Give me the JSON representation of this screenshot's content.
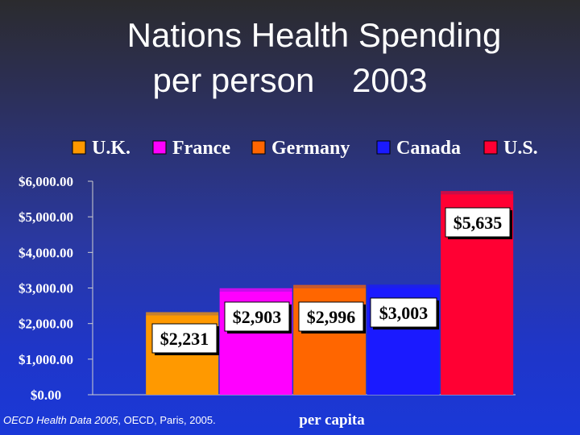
{
  "slide": {
    "title_line1": "Nations Health Spending",
    "title_line2": "per person    2003",
    "source_italic": "OECD Health Data 2005",
    "source_rest": ", OECD, Paris, 2005."
  },
  "chart_data": {
    "type": "bar",
    "categories": [
      "U.K.",
      "France",
      "Germany",
      "Canada",
      "U.S."
    ],
    "values": [
      2231,
      2903,
      2996,
      3003,
      5635
    ],
    "data_labels": [
      "$2,231",
      "$2,903",
      "$2,996",
      "$3,003",
      "$5,635"
    ],
    "colors": [
      "#ff9900",
      "#ff00ff",
      "#ff6600",
      "#1a1aff",
      "#ff0033"
    ],
    "xlabel": "per capita",
    "ylabel": "",
    "ylim": [
      0,
      6000
    ],
    "yticks": [
      0,
      1000,
      2000,
      3000,
      4000,
      5000,
      6000
    ],
    "ytick_labels": [
      "$0.00",
      "$1,000.00",
      "$2,000.00",
      "$3,000.00",
      "$4,000.00",
      "$5,000.00",
      "$6,000.00"
    ],
    "grid": false,
    "legend": {
      "placement": "top",
      "entries": [
        "U.K.",
        "France",
        "Germany",
        "Canada",
        "U.S."
      ]
    }
  }
}
